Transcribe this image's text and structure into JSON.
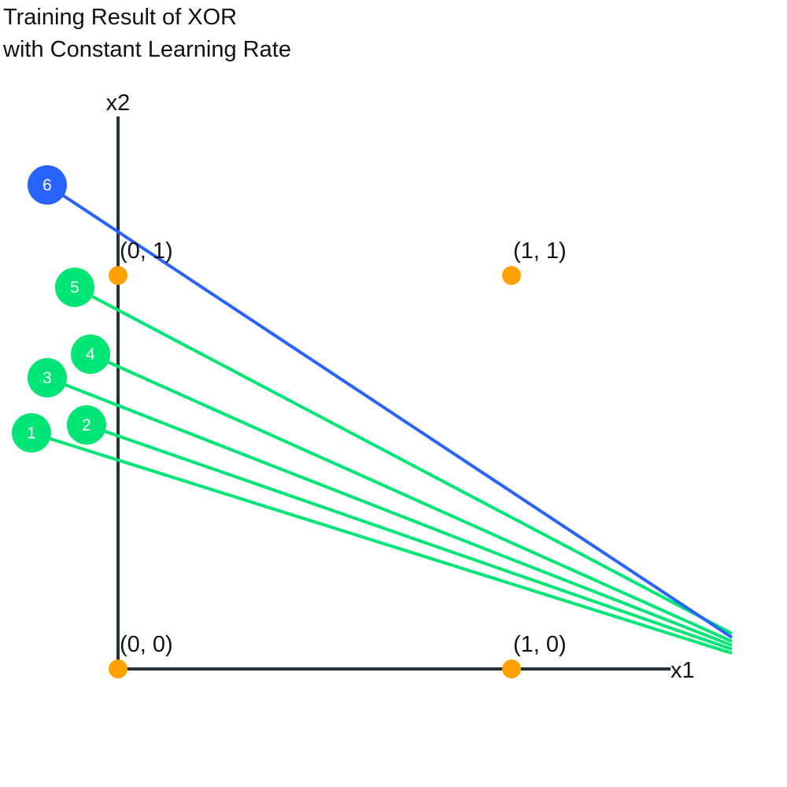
{
  "title": {
    "line1": "Training Result of XOR",
    "line2": "with Constant Learning Rate"
  },
  "axes": {
    "x_label": "x1",
    "y_label": "x2",
    "color": "#263238"
  },
  "points": [
    {
      "x": 0,
      "y": 1,
      "label": "(0, 1)"
    },
    {
      "x": 1,
      "y": 1,
      "label": "(1, 1)"
    },
    {
      "x": 0,
      "y": 0,
      "label": "(0, 0)"
    },
    {
      "x": 1,
      "y": 0,
      "label": "(1, 0)"
    }
  ],
  "lines": [
    {
      "label": "1",
      "x0": -0.22,
      "y0": 0.6,
      "x1": 1.56,
      "y1": 0.04,
      "color": "#00e676"
    },
    {
      "label": "2",
      "x0": -0.08,
      "y0": 0.62,
      "x1": 1.56,
      "y1": 0.05,
      "color": "#00e676"
    },
    {
      "label": "3",
      "x0": -0.18,
      "y0": 0.74,
      "x1": 1.56,
      "y1": 0.06,
      "color": "#00e676"
    },
    {
      "label": "4",
      "x0": -0.07,
      "y0": 0.8,
      "x1": 1.56,
      "y1": 0.07,
      "color": "#00e676"
    },
    {
      "label": "5",
      "x0": -0.11,
      "y0": 0.97,
      "x1": 1.56,
      "y1": 0.09,
      "color": "#00e676"
    },
    {
      "label": "6",
      "x0": -0.18,
      "y0": 1.23,
      "x1": 1.56,
      "y1": 0.08,
      "color": "#2962ff"
    }
  ],
  "colors": {
    "point": "#ffa000",
    "badge_text": "#ffffff"
  }
}
